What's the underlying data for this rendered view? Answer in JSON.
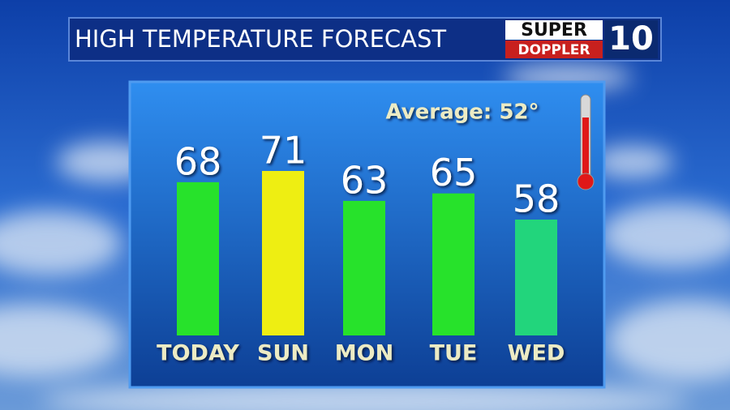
{
  "chart_data": {
    "type": "bar",
    "title": "HIGH TEMPERATURE FORECAST",
    "logo": {
      "line1": "SUPER",
      "line2": "DOPPLER",
      "channel": "10"
    },
    "annotation": "Average: 52°",
    "categories": [
      "TODAY",
      "SUN",
      "MON",
      "TUE",
      "WED"
    ],
    "values": [
      68,
      71,
      63,
      65,
      58
    ],
    "colors": [
      "#27e22b",
      "#eeee12",
      "#27e22b",
      "#27e22b",
      "#22d57c"
    ]
  }
}
